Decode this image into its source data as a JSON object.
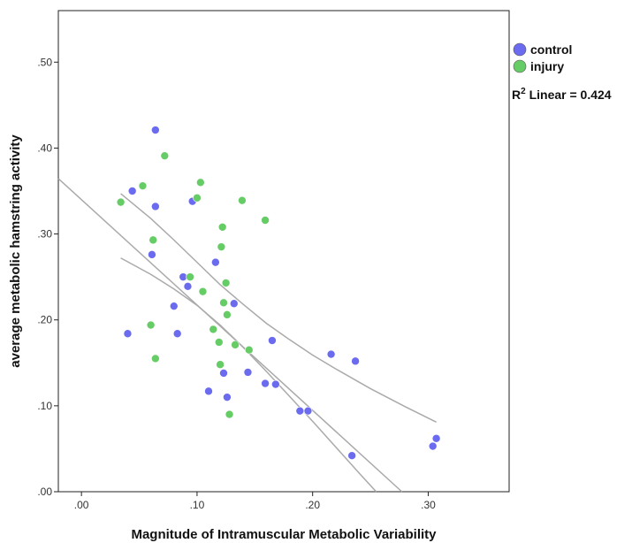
{
  "chart_data": {
    "type": "scatter",
    "xlabel": "Magnitude of Intramuscular Metabolic Variability",
    "ylabel": "average metabolic hamstring activity",
    "xlim": [
      -0.02,
      0.37
    ],
    "ylim": [
      0.0,
      0.56
    ],
    "xticks": [
      ".00",
      ".10",
      ".20",
      ".30"
    ],
    "xtick_values": [
      0.0,
      0.1,
      0.2,
      0.3
    ],
    "yticks": [
      ".00",
      ".10",
      ".20",
      ".30",
      ".40",
      ".50"
    ],
    "ytick_values": [
      0.0,
      0.1,
      0.2,
      0.3,
      0.4,
      0.5
    ],
    "grid": false,
    "legend_position": "top-right-outside",
    "fit_annotation_prefix": "R",
    "fit_annotation_sup": "2",
    "fit_annotation_suffix": " Linear = 0.424",
    "series": [
      {
        "name": "control",
        "color": "#6b6bf0",
        "points": [
          [
            0.04,
            0.184
          ],
          [
            0.044,
            0.35
          ],
          [
            0.061,
            0.276
          ],
          [
            0.064,
            0.421
          ],
          [
            0.064,
            0.332
          ],
          [
            0.08,
            0.216
          ],
          [
            0.083,
            0.184
          ],
          [
            0.088,
            0.25
          ],
          [
            0.092,
            0.239
          ],
          [
            0.096,
            0.338
          ],
          [
            0.11,
            0.117
          ],
          [
            0.116,
            0.267
          ],
          [
            0.123,
            0.138
          ],
          [
            0.126,
            0.11
          ],
          [
            0.132,
            0.219
          ],
          [
            0.144,
            0.139
          ],
          [
            0.159,
            0.126
          ],
          [
            0.165,
            0.176
          ],
          [
            0.168,
            0.125
          ],
          [
            0.189,
            0.094
          ],
          [
            0.196,
            0.094
          ],
          [
            0.216,
            0.16
          ],
          [
            0.234,
            0.042
          ],
          [
            0.237,
            0.152
          ],
          [
            0.304,
            0.053
          ],
          [
            0.307,
            0.062
          ]
        ]
      },
      {
        "name": "injury",
        "color": "#66cc66",
        "points": [
          [
            0.034,
            0.337
          ],
          [
            0.053,
            0.356
          ],
          [
            0.06,
            0.194
          ],
          [
            0.062,
            0.293
          ],
          [
            0.064,
            0.155
          ],
          [
            0.072,
            0.391
          ],
          [
            0.094,
            0.25
          ],
          [
            0.1,
            0.342
          ],
          [
            0.103,
            0.36
          ],
          [
            0.105,
            0.233
          ],
          [
            0.114,
            0.189
          ],
          [
            0.119,
            0.174
          ],
          [
            0.12,
            0.148
          ],
          [
            0.121,
            0.285
          ],
          [
            0.122,
            0.308
          ],
          [
            0.123,
            0.22
          ],
          [
            0.125,
            0.243
          ],
          [
            0.126,
            0.206
          ],
          [
            0.128,
            0.09
          ],
          [
            0.133,
            0.171
          ],
          [
            0.139,
            0.339
          ],
          [
            0.145,
            0.165
          ],
          [
            0.159,
            0.316
          ]
        ]
      }
    ],
    "fit_line": {
      "color": "#aaaaaa",
      "x": [
        -0.02,
        0.2772
      ],
      "y": [
        0.3645,
        0.0
      ]
    },
    "confidence_band": {
      "color": "#aaaaaa",
      "upper": [
        [
          0.034,
          0.347
        ],
        [
          0.06,
          0.318
        ],
        [
          0.08,
          0.293
        ],
        [
          0.1,
          0.267
        ],
        [
          0.12,
          0.241
        ],
        [
          0.14,
          0.218
        ],
        [
          0.16,
          0.196
        ],
        [
          0.18,
          0.177
        ],
        [
          0.2,
          0.159
        ],
        [
          0.22,
          0.143
        ],
        [
          0.25,
          0.12
        ],
        [
          0.28,
          0.099
        ],
        [
          0.307,
          0.081
        ]
      ],
      "lower": [
        [
          0.034,
          0.272
        ],
        [
          0.06,
          0.253
        ],
        [
          0.08,
          0.236
        ],
        [
          0.1,
          0.217
        ],
        [
          0.12,
          0.194
        ],
        [
          0.14,
          0.168
        ],
        [
          0.16,
          0.14
        ],
        [
          0.18,
          0.111
        ],
        [
          0.2,
          0.082
        ],
        [
          0.22,
          0.052
        ],
        [
          0.24,
          0.022
        ],
        [
          0.255,
          0.0
        ]
      ]
    }
  }
}
